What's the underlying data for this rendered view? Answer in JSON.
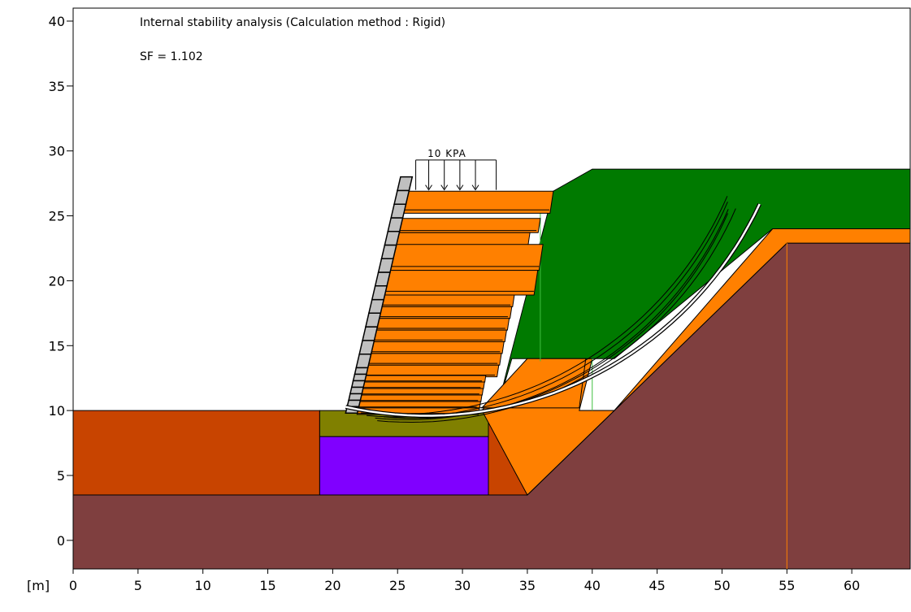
{
  "title": "Internal stability analysis (Calculation method : Rigid)",
  "safety_factor": "SF = 1.102",
  "unit_label": "[m]",
  "load_label": "10 KPA",
  "axis": {
    "x_ticks": [
      0,
      5,
      10,
      15,
      20,
      25,
      30,
      35,
      40,
      45,
      50,
      55,
      60
    ],
    "y_ticks": [
      0,
      5,
      10,
      15,
      20,
      25,
      30,
      35,
      40
    ],
    "x_range": [
      0,
      64.5
    ],
    "y_range": [
      -2.2,
      41
    ]
  },
  "colors": {
    "bedrock": "#7f3f3f",
    "foundation_soil": "#c84400",
    "backfill": "#007a00",
    "reinforced_fill": "#ff8000",
    "leveling_pad": "#808000",
    "replacement": "#8000ff",
    "slip_curve": "#ffffff",
    "facing_block": "#c0c0c0"
  },
  "wall": {
    "layers": [
      {
        "y": 26.9,
        "h": 1.7,
        "back": 37
      },
      {
        "y": 24.8,
        "h": 1.1,
        "back": 36
      },
      {
        "y": 23.7,
        "h": 1.1,
        "back": 35.2
      },
      {
        "y": 22.8,
        "h": 2.0,
        "back": 36.2
      },
      {
        "y": 20.8,
        "h": 1.9,
        "back": 35.8
      },
      {
        "y": 18.9,
        "h": 0.9,
        "back": 34.0
      },
      {
        "y": 18.0,
        "h": 0.9,
        "back": 33.8
      },
      {
        "y": 17.1,
        "h": 0.9,
        "back": 33.6
      },
      {
        "y": 16.2,
        "h": 0.9,
        "back": 33.4
      },
      {
        "y": 15.3,
        "h": 0.9,
        "back": 33.2
      },
      {
        "y": 14.4,
        "h": 0.9,
        "back": 33.0
      },
      {
        "y": 13.5,
        "h": 0.9,
        "back": 32.8
      },
      {
        "y": 12.7,
        "h": 0.5,
        "back": 31.8
      },
      {
        "y": 12.2,
        "h": 0.5,
        "back": 31.7
      },
      {
        "y": 11.7,
        "h": 0.5,
        "back": 31.6
      },
      {
        "y": 11.2,
        "h": 0.5,
        "back": 31.5
      },
      {
        "y": 10.7,
        "h": 0.5,
        "back": 31.4
      },
      {
        "y": 10.2,
        "h": 0.5,
        "back": 31.3
      }
    ]
  }
}
